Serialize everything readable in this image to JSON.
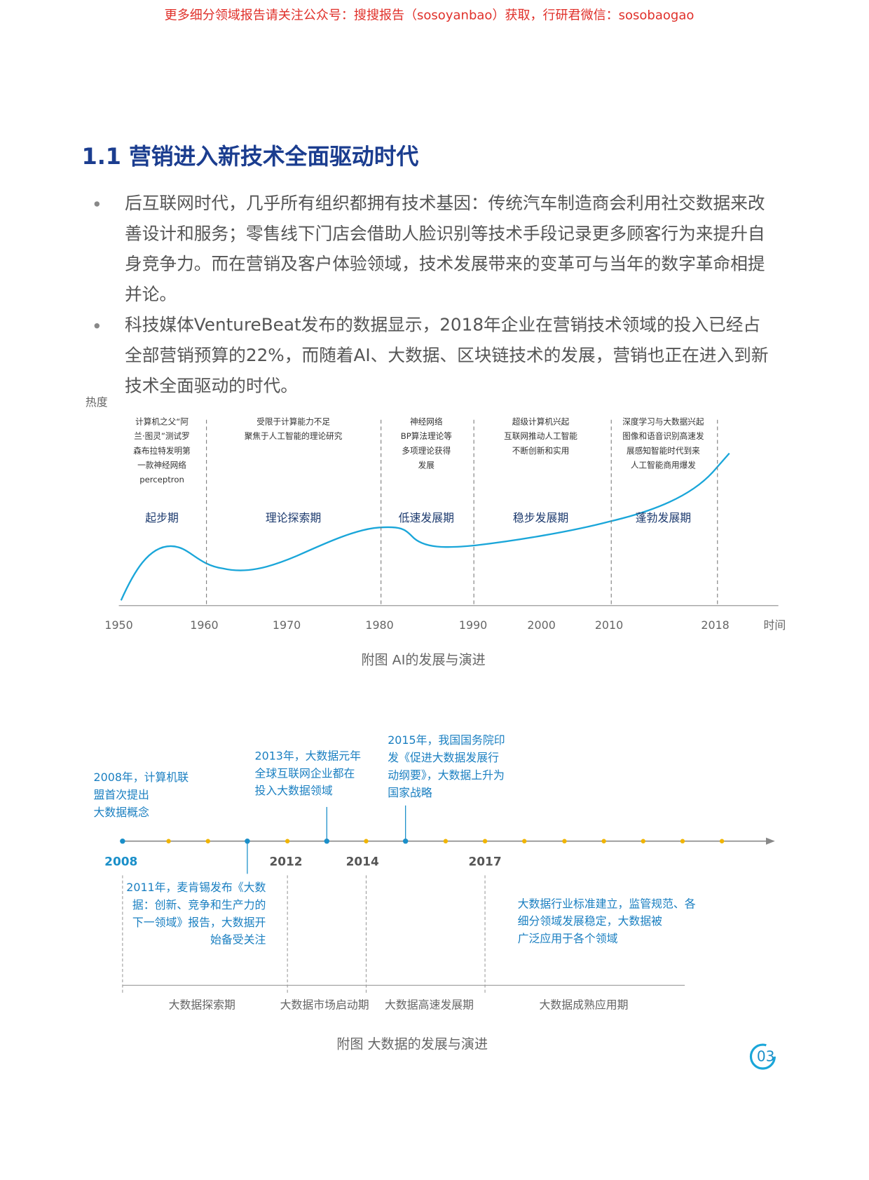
{
  "header_notice": "更多细分领域报告请关注公众号：搜搜报告（sosoyanbao）获取，行研君微信：sosobaogao",
  "section": {
    "title": "1.1 营销进入新技术全面驱动时代",
    "bullets": [
      "后互联网时代，几乎所有组织都拥有技术基因：传统汽车制造商会利用社交数据来改善设计和服务；零售线下门店会借助人脸识别等技术手段记录更多顾客行为来提升自身竞争力。而在营销及客户体验领域，技术发展带来的变革可与当年的数字革命相提并论。",
      "科技媒体VentureBeat发布的数据显示，2018年企业在营销技术领域的投入已经占全部营销预算的22%，而随着AI、大数据、区块链技术的发展，营销也正在进入到新技术全面驱动的时代。"
    ]
  },
  "ai_figure": {
    "y_label": "热度",
    "x_label": "时间",
    "years": [
      "1950",
      "1960",
      "1970",
      "1980",
      "1990",
      "2000",
      "2010",
      "2018"
    ],
    "periods": [
      {
        "name": "起步期",
        "note": [
          "计算机之父“阿",
          "兰·图灵”测试罗",
          "森布拉特发明第",
          "一款神经网络",
          "perceptron"
        ]
      },
      {
        "name": "理论探索期",
        "note": [
          "受限于计算能力不足",
          "聚焦于人工智能的理论研究"
        ]
      },
      {
        "name": "低速发展期",
        "note": [
          "神经网络",
          "BP算法理论等",
          "多项理论获得",
          "发展"
        ]
      },
      {
        "name": "稳步发展期",
        "note": [
          "超级计算机兴起",
          "互联网推动人工智能",
          "不断创新和实用"
        ]
      },
      {
        "name": "蓬勃发展期",
        "note": [
          "深度学习与大数据兴起",
          "图像和语音识别高速发",
          "展感知智能时代到来",
          "人工智能商用爆发"
        ]
      }
    ],
    "caption": "附图  AI的发展与演进"
  },
  "bigdata_figure": {
    "years": [
      "2008",
      "2012",
      "2014",
      "2017"
    ],
    "events_above": [
      [
        "2008年，计算机联",
        "盟首次提出",
        "大数据概念"
      ],
      [
        "2013年，大数据元年",
        "全球互联网企业都在",
        "投入大数据领域"
      ],
      [
        "2015年，我国国务院印",
        "发《促进大数据发展行",
        "动纲要》，大数据上升为",
        "国家战略"
      ]
    ],
    "events_below": [
      [
        "2011年，麦肯锡发布《大数",
        "据：创新、竞争和生产力的",
        "下一领域》报告，大数据开",
        "始备受关注"
      ],
      [
        "大数据行业标准建立，监管规范、各",
        "细分领域发展稳定，大数据被",
        "广泛应用于各个领域"
      ]
    ],
    "phases": [
      "大数据探索期",
      "大数据市场启动期",
      "大数据高速发展期",
      "大数据成熟应用期"
    ],
    "caption": "附图  大数据的发展与演进"
  },
  "page_number": "03"
}
